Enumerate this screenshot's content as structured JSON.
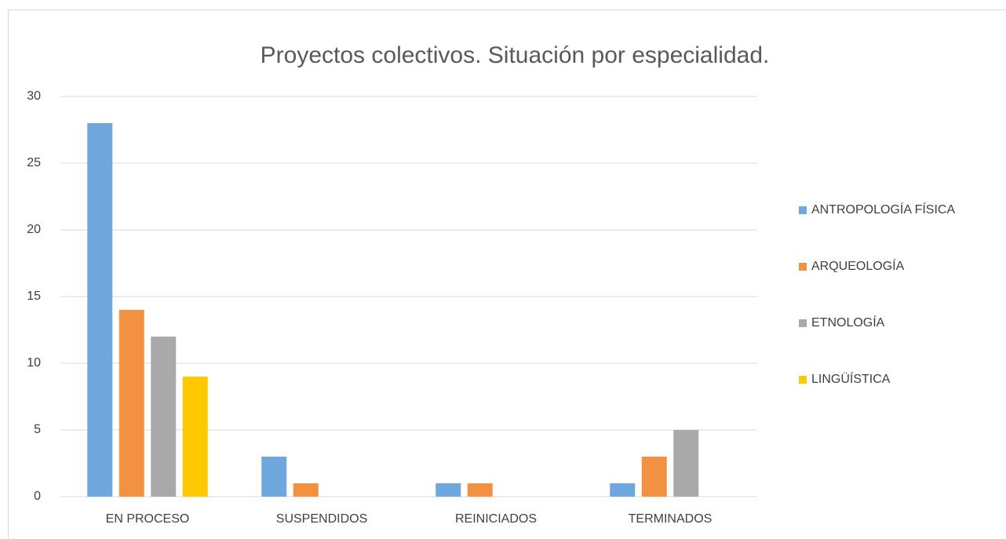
{
  "chart_data": {
    "type": "bar",
    "title": "Proyectos colectivos. Situación por especialidad.",
    "categories": [
      "EN PROCESO",
      "SUSPENDIDOS",
      "REINICIADOS",
      "TERMINADOS"
    ],
    "series": [
      {
        "name": "ANTROPOLOGÍA FÍSICA",
        "color": "#6fa8dc",
        "values": [
          28,
          3,
          1,
          1
        ]
      },
      {
        "name": "ARQUEOLOGÍA",
        "color": "#f39142",
        "values": [
          14,
          1,
          1,
          3
        ]
      },
      {
        "name": "ETNOLOGÍA",
        "color": "#a9a9a9",
        "values": [
          12,
          null,
          null,
          5
        ]
      },
      {
        "name": "LINGÜÍSTICA",
        "color": "#ffc900",
        "values": [
          9,
          null,
          null,
          null
        ]
      }
    ],
    "ylim": [
      0,
      30
    ],
    "yticks": [
      0,
      5,
      10,
      15,
      20,
      25,
      30
    ],
    "grid": true,
    "legend": "right"
  }
}
